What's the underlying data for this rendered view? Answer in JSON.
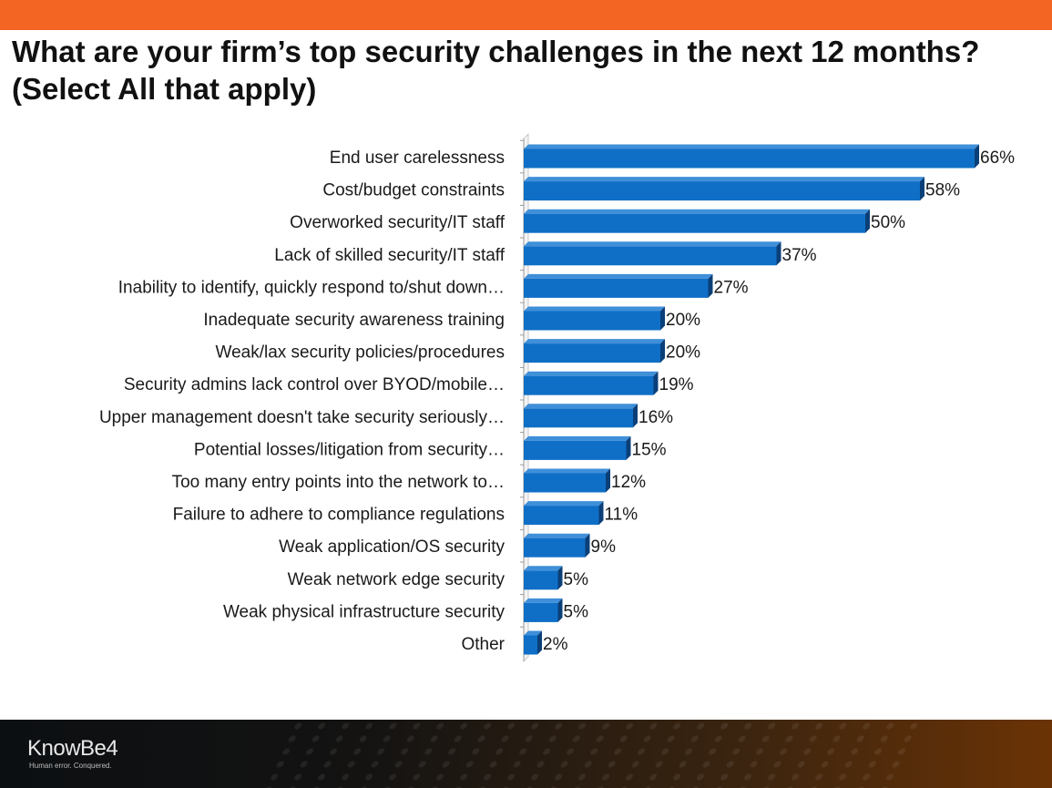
{
  "header": {
    "title": "What are your firm’s top security challenges in the next 12 months? (Select All that apply)",
    "accent_color": "#f26522"
  },
  "chart_data": {
    "type": "bar",
    "orientation": "horizontal",
    "categories": [
      "End user carelessness",
      "Cost/budget constraints",
      "Overworked security/IT staff",
      "Lack of skilled security/IT staff",
      "Inability to identify, quickly respond to/shut down…",
      "Inadequate security awareness training",
      "Weak/lax security policies/procedures",
      "Security admins lack control over BYOD/mobile…",
      "Upper management doesn't take security seriously…",
      "Potential losses/litigation from security…",
      "Too many entry points into the network to…",
      "Failure to adhere to compliance regulations",
      "Weak application/OS security",
      "Weak network edge security",
      "Weak physical infrastructure security",
      "Other"
    ],
    "values": [
      66,
      58,
      50,
      37,
      27,
      20,
      20,
      19,
      16,
      15,
      12,
      11,
      9,
      5,
      5,
      2
    ],
    "value_labels": [
      "66%",
      "58%",
      "50%",
      "37%",
      "27%",
      "20%",
      "20%",
      "19%",
      "16%",
      "15%",
      "12%",
      "11%",
      "9%",
      "5%",
      "5%",
      "2%"
    ],
    "title": "",
    "xlabel": "",
    "ylabel": "",
    "xlim": [
      0,
      66
    ],
    "grid": false,
    "legend": "none",
    "bar_color": "#0f6fc6",
    "bar_dark_color": "#0b3f78"
  },
  "footer": {
    "logo": "KnowBe4",
    "tagline": "Human error. Conquered."
  }
}
